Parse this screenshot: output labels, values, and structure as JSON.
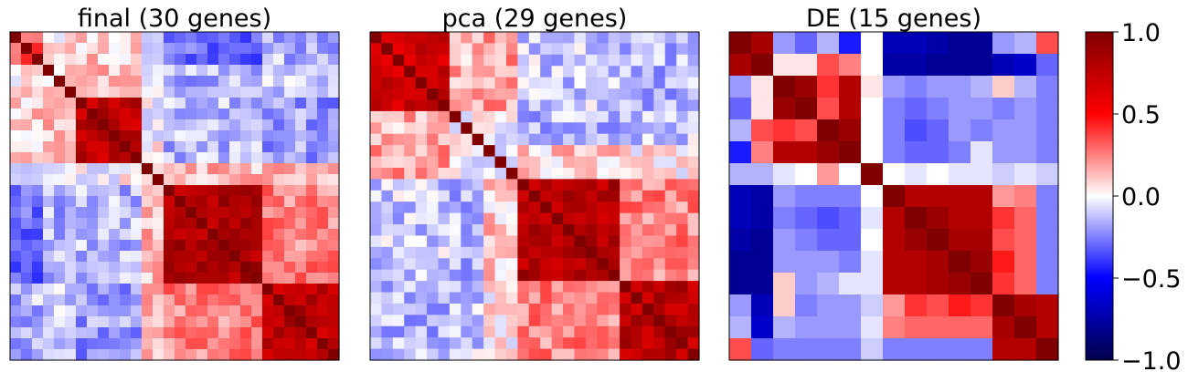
{
  "chart_data": [
    {
      "type": "heatmap",
      "title": "final (30 genes)",
      "n": 30,
      "blocks": [
        [
          0,
          3
        ],
        [
          3,
          6
        ],
        [
          6,
          12
        ],
        [
          12,
          14
        ],
        [
          14,
          23
        ],
        [
          23,
          30
        ]
      ],
      "within": [
        0.32,
        0.05,
        0.75,
        0.0,
        0.82,
        0.78
      ],
      "between": [
        [
          0.32,
          0.05,
          0.1,
          -0.05,
          -0.3,
          -0.15
        ],
        [
          0.05,
          0.05,
          0.15,
          0.0,
          -0.15,
          -0.1
        ],
        [
          0.1,
          0.15,
          0.75,
          0.0,
          -0.15,
          -0.2
        ],
        [
          -0.05,
          0.0,
          0.0,
          0.0,
          0.15,
          0.12
        ],
        [
          -0.3,
          -0.15,
          -0.15,
          0.15,
          0.82,
          0.25
        ],
        [
          -0.15,
          -0.1,
          -0.2,
          0.12,
          0.25,
          0.78
        ]
      ],
      "noise": 0.13,
      "seed": 11
    },
    {
      "type": "heatmap",
      "title": "pca (29 genes)",
      "n": 29,
      "blocks": [
        [
          0,
          7
        ],
        [
          7,
          10
        ],
        [
          10,
          13
        ],
        [
          13,
          22
        ],
        [
          22,
          29
        ]
      ],
      "within": [
        0.7,
        0.05,
        0.0,
        0.8,
        0.78
      ],
      "between": [
        [
          0.7,
          0.15,
          0.2,
          -0.1,
          -0.15
        ],
        [
          0.15,
          0.05,
          0.0,
          -0.15,
          -0.1
        ],
        [
          0.2,
          0.0,
          0.0,
          0.1,
          0.05
        ],
        [
          -0.1,
          -0.15,
          0.1,
          0.8,
          0.25
        ],
        [
          -0.15,
          -0.1,
          0.05,
          0.25,
          0.78
        ]
      ],
      "noise": 0.14,
      "seed": 23
    },
    {
      "type": "heatmap",
      "title": "DE (15 genes)",
      "n": 15,
      "matrix": [
        [
          1.0,
          0.85,
          -0.2,
          -0.3,
          -0.15,
          -0.45,
          0.0,
          -0.7,
          -0.7,
          -0.75,
          -0.8,
          -0.8,
          -0.2,
          -0.15,
          0.35
        ],
        [
          0.85,
          1.0,
          0.05,
          0.05,
          0.35,
          0.25,
          0.0,
          -0.75,
          -0.75,
          -0.8,
          -0.8,
          -0.8,
          -0.7,
          -0.65,
          -0.3
        ],
        [
          -0.2,
          0.05,
          1.0,
          0.9,
          0.4,
          0.8,
          0.05,
          -0.2,
          -0.25,
          -0.2,
          -0.2,
          -0.15,
          0.1,
          -0.15,
          -0.25
        ],
        [
          -0.3,
          0.05,
          0.9,
          1.0,
          0.35,
          0.8,
          0.0,
          -0.25,
          -0.3,
          -0.25,
          -0.2,
          -0.2,
          -0.25,
          -0.2,
          -0.25
        ],
        [
          -0.15,
          0.35,
          0.4,
          0.35,
          1.0,
          0.9,
          0.0,
          -0.25,
          -0.35,
          -0.3,
          -0.2,
          -0.25,
          -0.2,
          -0.2,
          -0.25
        ],
        [
          -0.45,
          0.25,
          0.8,
          0.8,
          0.9,
          1.0,
          0.0,
          -0.25,
          -0.3,
          -0.3,
          -0.25,
          -0.05,
          -0.2,
          -0.2,
          -0.25
        ],
        [
          -0.15,
          -0.15,
          -0.05,
          0.0,
          0.2,
          0.0,
          1.0,
          0.0,
          -0.05,
          0.0,
          -0.05,
          -0.05,
          -0.1,
          -0.05,
          -0.1
        ],
        [
          -0.7,
          -0.75,
          -0.2,
          -0.25,
          -0.25,
          -0.25,
          0.0,
          1.0,
          0.8,
          0.8,
          0.8,
          0.8,
          0.2,
          0.25,
          -0.25
        ],
        [
          -0.7,
          -0.75,
          -0.25,
          -0.3,
          -0.35,
          -0.3,
          -0.05,
          0.8,
          1.0,
          0.9,
          0.8,
          0.8,
          0.4,
          0.3,
          -0.25
        ],
        [
          -0.75,
          -0.8,
          -0.2,
          -0.25,
          -0.3,
          -0.3,
          0.0,
          0.8,
          0.9,
          1.0,
          0.85,
          0.85,
          0.35,
          0.3,
          -0.25
        ],
        [
          -0.8,
          -0.8,
          -0.2,
          -0.2,
          -0.2,
          -0.25,
          -0.05,
          0.8,
          0.8,
          0.85,
          1.0,
          0.9,
          0.45,
          0.3,
          -0.25
        ],
        [
          -0.8,
          -0.8,
          0.1,
          -0.2,
          -0.15,
          -0.05,
          -0.05,
          0.8,
          0.8,
          0.85,
          0.9,
          1.0,
          0.4,
          0.3,
          -0.25
        ],
        [
          -0.2,
          -0.7,
          0.1,
          -0.25,
          -0.2,
          -0.2,
          -0.1,
          0.2,
          0.4,
          0.35,
          0.45,
          0.4,
          1.0,
          0.85,
          0.8
        ],
        [
          -0.15,
          -0.65,
          -0.15,
          -0.2,
          -0.2,
          -0.2,
          -0.05,
          0.25,
          0.3,
          0.3,
          0.3,
          0.3,
          0.85,
          1.0,
          0.8
        ],
        [
          0.35,
          -0.3,
          -0.25,
          -0.25,
          -0.25,
          -0.25,
          -0.1,
          -0.25,
          -0.25,
          -0.25,
          -0.25,
          -0.25,
          0.8,
          0.8,
          1.0
        ]
      ]
    }
  ],
  "colorbar": {
    "min": -1.0,
    "max": 1.0,
    "ticks": [
      1.0,
      0.5,
      0.0,
      -0.5,
      -1.0
    ],
    "tick_labels": [
      "1.0",
      "0.5",
      "0.0",
      "−0.5",
      "−1.0"
    ]
  },
  "colormap": [
    "#00004c",
    "#0000ff",
    "#ffffff",
    "#ff0000",
    "#800000"
  ]
}
